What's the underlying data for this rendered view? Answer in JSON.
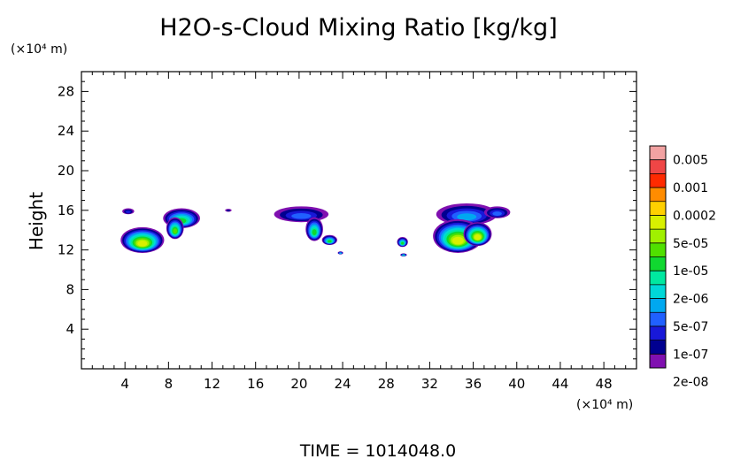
{
  "chart_data": {
    "type": "heatmap",
    "title": "H2O-s-Cloud Mixing Ratio [kg/kg]",
    "ylabel": "Height",
    "y_unit_label": "(×10⁴ m)",
    "x_unit_label": "(×10⁴ m)",
    "time_label": "TIME = 1014048.0",
    "xlim": [
      0,
      51
    ],
    "ylim": [
      0,
      30
    ],
    "x_ticks": [
      "4",
      "8",
      "12",
      "16",
      "20",
      "24",
      "28",
      "32",
      "36",
      "40",
      "44",
      "48"
    ],
    "y_ticks": [
      "4",
      "8",
      "12",
      "16",
      "20",
      "24",
      "28"
    ],
    "legend": {
      "placement": "right",
      "labels": [
        "0.005",
        "0.001",
        "0.0002",
        "5e-05",
        "1e-05",
        "2e-06",
        "5e-07",
        "1e-07",
        "2e-08"
      ],
      "colors_top_to_bottom": [
        "#f2a2a2",
        "#ef4646",
        "#ff2a00",
        "#ff8c00",
        "#ffd000",
        "#d8f000",
        "#a0f000",
        "#50e000",
        "#10d830",
        "#00e8a0",
        "#00d8d8",
        "#00a8f0",
        "#2060ff",
        "#1818d8",
        "#000090",
        "#8010b0"
      ]
    },
    "level_colors": [
      "#8010b0",
      "#000090",
      "#1818d8",
      "#2060ff",
      "#00a8f0",
      "#00d8d8",
      "#00e8a0",
      "#10d830",
      "#50e000",
      "#a0f000",
      "#d8f000",
      "#ffd000"
    ],
    "cloud_cells": [
      {
        "x": 4.3,
        "y": 15.9,
        "w": 1.1,
        "h": 0.6,
        "levels": 3
      },
      {
        "x": 5.6,
        "y": 13.0,
        "w": 4.0,
        "h": 2.6,
        "levels": 11
      },
      {
        "x": 9.2,
        "y": 15.2,
        "w": 3.4,
        "h": 2.0,
        "levels": 8
      },
      {
        "x": 8.6,
        "y": 14.2,
        "w": 1.6,
        "h": 2.2,
        "levels": 9
      },
      {
        "x": 13.5,
        "y": 16.0,
        "w": 0.6,
        "h": 0.3,
        "levels": 2
      },
      {
        "x": 20.2,
        "y": 15.6,
        "w": 5.0,
        "h": 1.6,
        "levels": 4
      },
      {
        "x": 21.4,
        "y": 14.1,
        "w": 1.6,
        "h": 2.4,
        "levels": 8
      },
      {
        "x": 22.8,
        "y": 13.0,
        "w": 1.4,
        "h": 1.0,
        "levels": 8
      },
      {
        "x": 23.8,
        "y": 11.7,
        "w": 0.5,
        "h": 0.3,
        "levels": 6
      },
      {
        "x": 29.5,
        "y": 12.8,
        "w": 1.0,
        "h": 1.0,
        "levels": 8
      },
      {
        "x": 29.6,
        "y": 11.5,
        "w": 0.6,
        "h": 0.3,
        "levels": 7
      },
      {
        "x": 35.4,
        "y": 15.6,
        "w": 5.6,
        "h": 2.2,
        "levels": 5
      },
      {
        "x": 38.2,
        "y": 15.8,
        "w": 2.4,
        "h": 1.2,
        "levels": 4
      },
      {
        "x": 34.6,
        "y": 13.4,
        "w": 4.6,
        "h": 3.4,
        "levels": 11
      },
      {
        "x": 36.4,
        "y": 13.6,
        "w": 2.6,
        "h": 2.4,
        "levels": 11
      }
    ]
  }
}
